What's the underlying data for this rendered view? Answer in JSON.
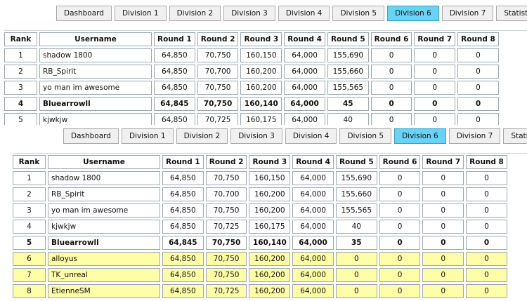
{
  "nav": {
    "tabs": [
      {
        "id": "dashboard",
        "label": "Dashboard",
        "active": false
      },
      {
        "id": "division-1",
        "label": "Division 1",
        "active": false
      },
      {
        "id": "division-2",
        "label": "Division 2",
        "active": false
      },
      {
        "id": "division-3",
        "label": "Division 3",
        "active": false
      },
      {
        "id": "division-4",
        "label": "Division 4",
        "active": false
      },
      {
        "id": "division-5",
        "label": "Division 5",
        "active": false
      },
      {
        "id": "division-6",
        "label": "Division 6",
        "active": true
      },
      {
        "id": "division-7",
        "label": "Division 7",
        "active": false
      },
      {
        "id": "statistics",
        "label": "Statistics",
        "active": false
      }
    ],
    "active_color": "#67d4f5"
  },
  "columns": [
    "Rank",
    "Username",
    "Round 1",
    "Round 2",
    "Round 3",
    "Round 4",
    "Round 5",
    "Round 6",
    "Round 7",
    "Round 8"
  ],
  "highlight_color": "#fefea8",
  "top_board": {
    "rows": [
      {
        "rank": "1",
        "username": "shadow 1800",
        "rounds": [
          "64,850",
          "70,750",
          "160,150",
          "64,000",
          "155,690",
          "0",
          "0",
          "0"
        ],
        "bold": false,
        "highlight": false
      },
      {
        "rank": "2",
        "username": "RB_Spirit",
        "rounds": [
          "64,850",
          "70,700",
          "160,200",
          "64,000",
          "155,660",
          "0",
          "0",
          "0"
        ],
        "bold": false,
        "highlight": false
      },
      {
        "rank": "3",
        "username": "yo man im awesome",
        "rounds": [
          "64,850",
          "70,750",
          "160,200",
          "64,000",
          "155,565",
          "0",
          "0",
          "0"
        ],
        "bold": false,
        "highlight": false
      },
      {
        "rank": "4",
        "username": "Bluearrowll",
        "rounds": [
          "64,845",
          "70,750",
          "160,140",
          "64,000",
          "45",
          "0",
          "0",
          "0"
        ],
        "bold": true,
        "highlight": false
      },
      {
        "rank": "5",
        "username": "kjwkjw",
        "rounds": [
          "64,850",
          "70,725",
          "160,175",
          "64,000",
          "40",
          "0",
          "0",
          "0"
        ],
        "bold": false,
        "highlight": false
      }
    ]
  },
  "bottom_board": {
    "rows": [
      {
        "rank": "1",
        "username": "shadow 1800",
        "rounds": [
          "64,850",
          "70,750",
          "160,150",
          "64,000",
          "155,690",
          "0",
          "0",
          "0"
        ],
        "bold": false,
        "highlight": false
      },
      {
        "rank": "2",
        "username": "RB_Spirit",
        "rounds": [
          "64,850",
          "70,700",
          "160,200",
          "64,000",
          "155,660",
          "0",
          "0",
          "0"
        ],
        "bold": false,
        "highlight": false
      },
      {
        "rank": "3",
        "username": "yo man im awesome",
        "rounds": [
          "64,850",
          "70,750",
          "160,200",
          "64,000",
          "155,565",
          "0",
          "0",
          "0"
        ],
        "bold": false,
        "highlight": false
      },
      {
        "rank": "4",
        "username": "kjwkjw",
        "rounds": [
          "64,850",
          "70,725",
          "160,175",
          "64,000",
          "40",
          "0",
          "0",
          "0"
        ],
        "bold": false,
        "highlight": false
      },
      {
        "rank": "5",
        "username": "Bluearrowll",
        "rounds": [
          "64,845",
          "70,750",
          "160,140",
          "64,000",
          "35",
          "0",
          "0",
          "0"
        ],
        "bold": true,
        "highlight": false
      },
      {
        "rank": "6",
        "username": "alloyus",
        "rounds": [
          "64,850",
          "70,750",
          "160,200",
          "64,000",
          "0",
          "0",
          "0",
          "0"
        ],
        "bold": false,
        "highlight": true
      },
      {
        "rank": "7",
        "username": "TK_unreal",
        "rounds": [
          "64,850",
          "70,750",
          "160,200",
          "64,000",
          "0",
          "0",
          "0",
          "0"
        ],
        "bold": false,
        "highlight": true
      },
      {
        "rank": "8",
        "username": "EtienneSM",
        "rounds": [
          "64,850",
          "70,725",
          "160,200",
          "64,000",
          "0",
          "0",
          "0",
          "0"
        ],
        "bold": false,
        "highlight": true
      }
    ]
  }
}
